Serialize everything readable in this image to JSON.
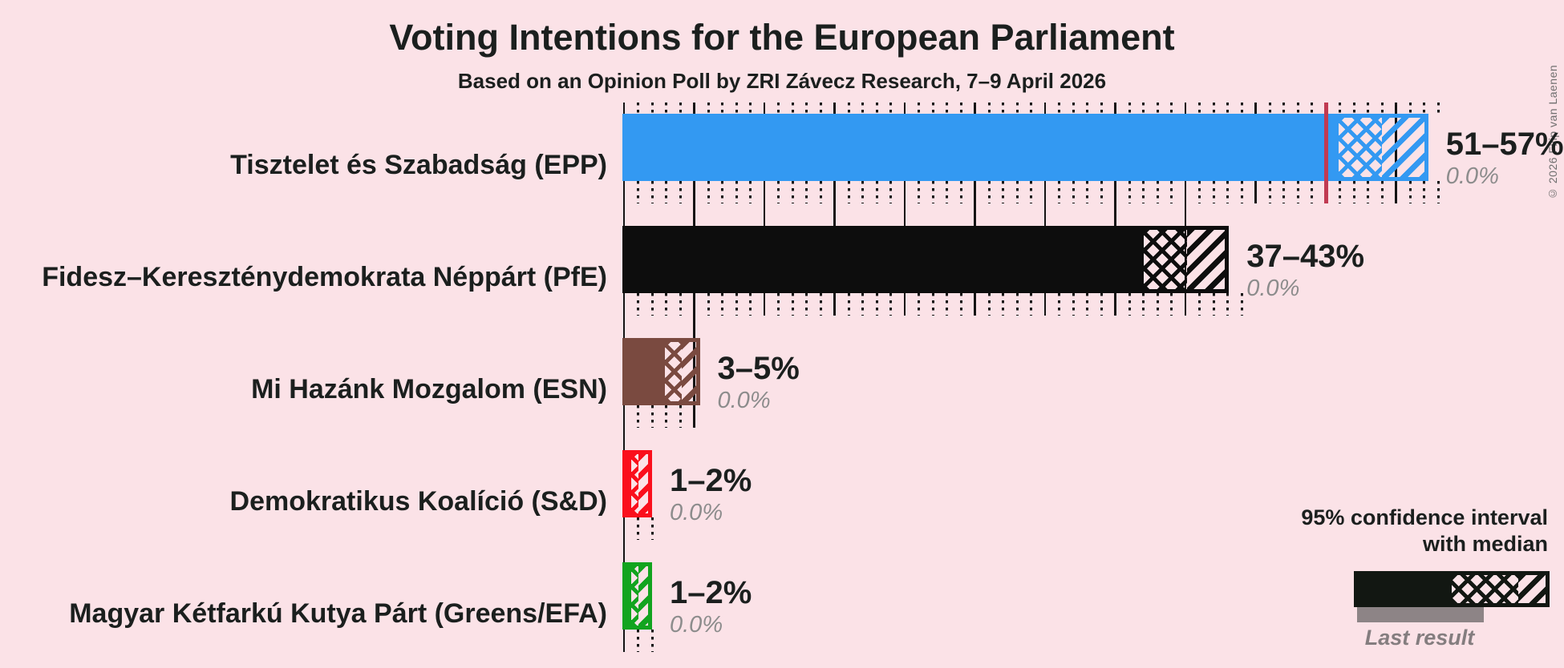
{
  "title": "Voting Intentions for the European Parliament",
  "subtitle": "Based on an Opinion Poll by ZRI Závecz Research, 7–9 April 2026",
  "copyright": "© 2026 Filip van Laenen",
  "colors": {
    "background": "#FBE2E7",
    "text_dark": "#1B1F1E",
    "text_gray": "#8C8C8C",
    "majority_line_red": "#C13A52",
    "gridline_black": "#141414",
    "legend_black": "#121712",
    "last_result_gray": "#8D8486"
  },
  "legend": {
    "ci_label_line1": "95% confidence interval",
    "ci_label_line2": "with median",
    "last_result_label": "Last result"
  },
  "chart_data": {
    "type": "bar",
    "orientation": "horizontal",
    "unit": "percent",
    "x_axis": {
      "min": 0,
      "max": 58,
      "major_gridline_step": 5,
      "minor_gridline_step": 1,
      "majority_threshold": 50,
      "gridlines_labeled": false
    },
    "top_band_ticks_to": 58,
    "series": [
      {
        "party": "Tisztelet és Szabadság (EPP)",
        "ci_low": 51,
        "median": 54,
        "ci_high": 57,
        "range_label": "51–57%",
        "last_result": 0.0,
        "last_result_label": "0.0%",
        "color": "#3399F2",
        "draw": {
          "low": 50.9,
          "med": 54.0,
          "high": 57.3
        },
        "ticks_to": 58
      },
      {
        "party": "Fidesz–Kereszténydemokrata Néppárt (PfE)",
        "ci_low": 37,
        "median": 40,
        "ci_high": 43,
        "range_label": "37–43%",
        "last_result": 0.0,
        "last_result_label": "0.0%",
        "color": "#0D0D0D",
        "draw": {
          "low": 37.0,
          "med": 40.1,
          "high": 43.1
        },
        "ticks_to": 44
      },
      {
        "party": "Mi Hazánk Mozgalom (ESN)",
        "ci_low": 3,
        "median": 4,
        "ci_high": 5,
        "range_label": "3–5%",
        "last_result": 0.0,
        "last_result_label": "0.0%",
        "color": "#7A4A40",
        "draw": {
          "low": 2.9,
          "med": 4.1,
          "high": 5.4
        },
        "ticks_to": 5
      },
      {
        "party": "Demokratikus Koalíció (S&D)",
        "ci_low": 1,
        "median": 1.5,
        "ci_high": 2,
        "range_label": "1–2%",
        "last_result": 0.0,
        "last_result_label": "0.0%",
        "color": "#FA0F1C",
        "draw": {
          "low": 0.5,
          "med": 1.0,
          "high": 2.0
        },
        "ticks_to": 2
      },
      {
        "party": "Magyar Kétfarkú Kutya Párt (Greens/EFA)",
        "ci_low": 1,
        "median": 1.5,
        "ci_high": 2,
        "range_label": "1–2%",
        "last_result": 0.0,
        "last_result_label": "0.0%",
        "color": "#12A41F",
        "draw": {
          "low": 0.5,
          "med": 1.0,
          "high": 2.0
        },
        "ticks_to": 2
      }
    ]
  }
}
